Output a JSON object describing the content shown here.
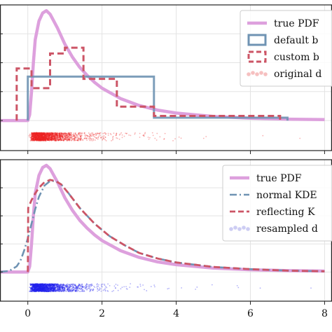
{
  "chart_data": [
    {
      "type": "line",
      "panel": "top",
      "xlim": [
        -0.75,
        8.2
      ],
      "ylim": [
        -0.26,
        1.0
      ],
      "xticks": [
        0,
        2,
        4,
        6,
        8
      ],
      "xticklabels": [
        "",
        "",
        "",
        "",
        ""
      ],
      "grid": true,
      "legend_position": "top-right",
      "legend": [
        {
          "label": "true PDF",
          "style": "line",
          "color": "#dda0dd"
        },
        {
          "label": "default b",
          "style": "box",
          "color": "#6f93b3"
        },
        {
          "label": "custom b",
          "style": "dashed-box",
          "color": "#cc5566"
        },
        {
          "label": "original d",
          "style": "points",
          "color": "#f2a5a5"
        }
      ],
      "series": [
        {
          "name": "true PDF",
          "kind": "curve",
          "color": "#dda0dd",
          "x": [
            0,
            0.05,
            0.1,
            0.15,
            0.2,
            0.3,
            0.4,
            0.5,
            0.6,
            0.7,
            0.8,
            1.0,
            1.2,
            1.4,
            1.6,
            1.8,
            2.0,
            2.5,
            3.0,
            3.5,
            4.0,
            5.0,
            6.0,
            7.0,
            8.0
          ],
          "y": [
            0,
            0.05,
            0.25,
            0.5,
            0.7,
            0.86,
            0.93,
            0.95,
            0.92,
            0.86,
            0.8,
            0.66,
            0.55,
            0.46,
            0.39,
            0.33,
            0.28,
            0.19,
            0.13,
            0.09,
            0.065,
            0.035,
            0.02,
            0.012,
            0.008
          ]
        },
        {
          "name": "default bins",
          "kind": "step",
          "color": "#6f93b3",
          "edges": [
            0,
            3.4,
            7.0
          ],
          "heights": [
            0.38,
            0.025
          ]
        },
        {
          "name": "custom bins",
          "kind": "step",
          "color": "#cc5566",
          "edges": [
            -0.3,
            0.1,
            0.6,
            1.0,
            1.5,
            2.4,
            3.4,
            6.8
          ],
          "heights": [
            0.45,
            0.28,
            0.58,
            0.63,
            0.36,
            0.12,
            0.04
          ]
        }
      ],
      "points": {
        "name": "original data",
        "color": "#ee2222",
        "count": 2000,
        "y_band": -0.14,
        "distribution": "lognormal-like, dense near 0.5"
      }
    },
    {
      "type": "line",
      "panel": "bottom",
      "xlim": [
        -0.75,
        8.2
      ],
      "ylim": [
        -0.26,
        1.0
      ],
      "xticks": [
        0,
        2,
        4,
        6,
        8
      ],
      "xticklabels": [
        "0",
        "2",
        "4",
        "6",
        "8"
      ],
      "grid": true,
      "legend_position": "top-right",
      "legend": [
        {
          "label": "true PDF",
          "style": "line",
          "color": "#dda0dd"
        },
        {
          "label": "normal KDE",
          "style": "dashdot",
          "color": "#6f93b3"
        },
        {
          "label": "reflecting K",
          "style": "dashed",
          "color": "#cc5566"
        },
        {
          "label": "resampled d",
          "style": "points",
          "color": "#b8b8ee"
        }
      ],
      "series": [
        {
          "name": "true PDF",
          "kind": "curve",
          "color": "#dda0dd",
          "x": [
            0,
            0.05,
            0.1,
            0.15,
            0.2,
            0.3,
            0.4,
            0.5,
            0.6,
            0.7,
            0.8,
            1.0,
            1.2,
            1.4,
            1.6,
            1.8,
            2.0,
            2.5,
            3.0,
            3.5,
            4.0,
            5.0,
            6.0,
            7.0,
            8.0
          ],
          "y": [
            0,
            0.05,
            0.25,
            0.5,
            0.7,
            0.86,
            0.93,
            0.95,
            0.92,
            0.86,
            0.8,
            0.66,
            0.55,
            0.46,
            0.39,
            0.33,
            0.28,
            0.19,
            0.13,
            0.09,
            0.065,
            0.035,
            0.02,
            0.012,
            0.008
          ]
        },
        {
          "name": "normal KDE",
          "kind": "dashdot",
          "color": "#6f93b3",
          "x": [
            -0.75,
            -0.5,
            -0.3,
            -0.2,
            -0.1,
            0,
            0.1,
            0.2,
            0.3,
            0.45,
            0.6,
            0.75,
            0.9,
            1.1,
            1.4,
            1.8,
            2.2,
            2.6,
            3.0,
            3.5,
            4.0,
            5.0,
            6.0,
            7.0,
            8.0
          ],
          "y": [
            0.0,
            0.01,
            0.05,
            0.1,
            0.19,
            0.3,
            0.43,
            0.56,
            0.67,
            0.77,
            0.81,
            0.81,
            0.78,
            0.7,
            0.57,
            0.43,
            0.32,
            0.24,
            0.17,
            0.12,
            0.085,
            0.045,
            0.025,
            0.012,
            0.006
          ]
        },
        {
          "name": "reflecting KDE",
          "kind": "dashed",
          "color": "#cc5566",
          "x": [
            0,
            0.01,
            0.1,
            0.2,
            0.3,
            0.45,
            0.6,
            0.75,
            0.9,
            1.1,
            1.4,
            1.8,
            2.2,
            2.6,
            3.0,
            3.5,
            4.0,
            5.0,
            6.0,
            7.0,
            8.0
          ],
          "y": [
            0,
            0.57,
            0.64,
            0.7,
            0.75,
            0.8,
            0.82,
            0.81,
            0.78,
            0.7,
            0.57,
            0.43,
            0.32,
            0.24,
            0.17,
            0.12,
            0.085,
            0.045,
            0.025,
            0.012,
            0.006
          ]
        }
      ],
      "points": {
        "name": "resampled data",
        "color": "#2222ee",
        "count": 2000,
        "y_band": -0.14,
        "distribution": "lognormal-like, dense near 0.5"
      }
    }
  ]
}
